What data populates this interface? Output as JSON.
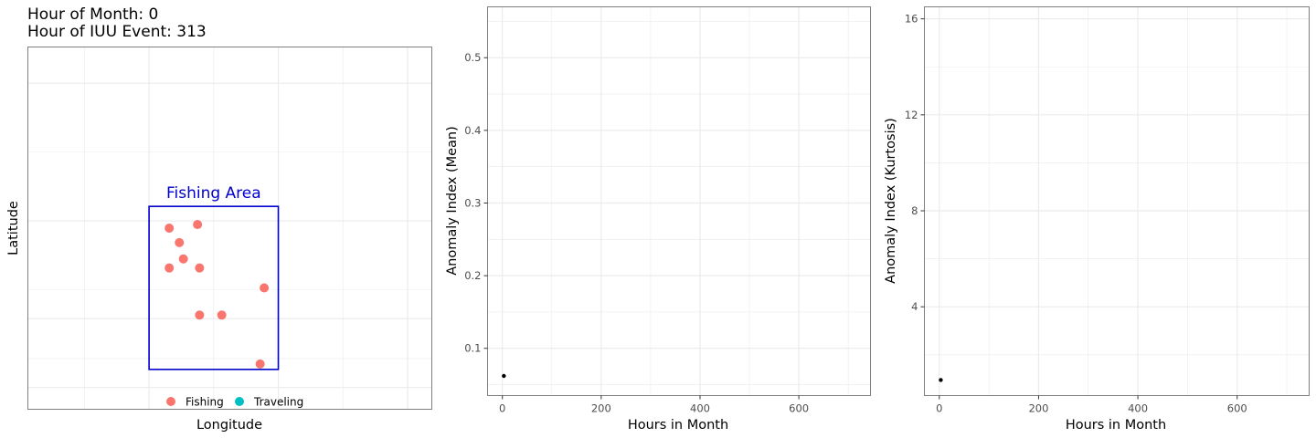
{
  "chart_data": [
    {
      "type": "scatter",
      "title_lines": [
        "Hour of Month: 0",
        "Hour of IUU Event: 313"
      ],
      "xlabel": "Longitude",
      "ylabel": "Latitude",
      "xlim": [
        0,
        100
      ],
      "ylim": [
        0,
        100
      ],
      "grid": true,
      "area": {
        "label": "Fishing Area",
        "x": [
          30,
          62
        ],
        "y": [
          11,
          56
        ],
        "color": "#0000cc"
      },
      "legend": {
        "placement": "bottom",
        "entries": [
          {
            "label": "Fishing",
            "color": "#f8766d"
          },
          {
            "label": "Traveling",
            "color": "#00bfc4"
          }
        ]
      },
      "series": [
        {
          "name": "Fishing",
          "color": "#f8766d",
          "points": [
            {
              "x": 35,
              "y": 50
            },
            {
              "x": 42,
              "y": 51
            },
            {
              "x": 37.5,
              "y": 46
            },
            {
              "x": 38.5,
              "y": 41.5
            },
            {
              "x": 35,
              "y": 39
            },
            {
              "x": 42.5,
              "y": 39
            },
            {
              "x": 58.5,
              "y": 33.5
            },
            {
              "x": 42.5,
              "y": 26
            },
            {
              "x": 48,
              "y": 26
            },
            {
              "x": 57.5,
              "y": 12.5
            }
          ]
        }
      ]
    },
    {
      "type": "scatter",
      "xlabel": "Hours in Month",
      "ylabel": "Anomaly Index (Mean)",
      "xlim": [
        -30,
        745
      ],
      "ylim": [
        0.035,
        0.57
      ],
      "xticks": [
        0,
        200,
        400,
        600
      ],
      "yticks": [
        0.1,
        0.2,
        0.3,
        0.4,
        0.5
      ],
      "grid": true,
      "points": [
        {
          "x": 3,
          "y": 0.062
        }
      ],
      "color": "#000000"
    },
    {
      "type": "scatter",
      "xlabel": "Hours in Month",
      "ylabel": "Anomaly Index (Kurtosis)",
      "xlim": [
        -30,
        745
      ],
      "ylim": [
        0.3,
        16.5
      ],
      "xticks": [
        0,
        200,
        400,
        600
      ],
      "yticks": [
        4,
        8,
        12,
        16
      ],
      "grid": true,
      "points": [
        {
          "x": 3,
          "y": 0.95
        }
      ],
      "color": "#000000"
    }
  ]
}
